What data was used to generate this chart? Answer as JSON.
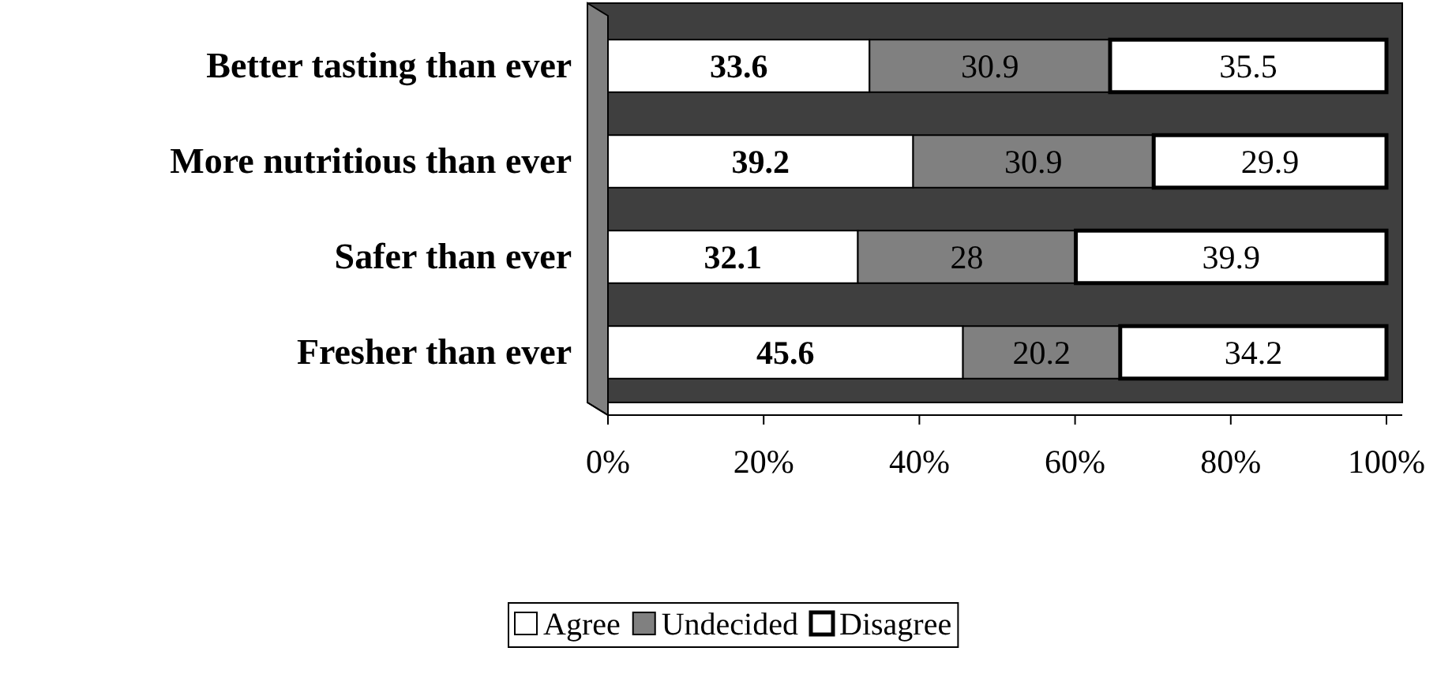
{
  "chart_data": {
    "type": "bar",
    "orientation": "horizontal",
    "stacked": true,
    "categories": [
      "Better tasting than ever",
      "More nutritious than ever",
      "Safer than ever",
      "Fresher than ever"
    ],
    "series": [
      {
        "name": "Agree",
        "color": "#ffffff",
        "values": [
          33.6,
          39.2,
          32.1,
          45.6
        ]
      },
      {
        "name": "Undecided",
        "color": "#808080",
        "values": [
          30.9,
          30.9,
          28,
          20.2
        ]
      },
      {
        "name": "Disagree",
        "color": "#ffffff",
        "values": [
          35.5,
          29.9,
          39.9,
          34.2
        ]
      }
    ],
    "xlim": [
      0,
      100
    ],
    "xticks": [
      {
        "value": 0,
        "label": "0%"
      },
      {
        "value": 20,
        "label": "20%"
      },
      {
        "value": 40,
        "label": "40%"
      },
      {
        "value": 60,
        "label": "60%"
      },
      {
        "value": 80,
        "label": "80%"
      },
      {
        "value": 100,
        "label": "100%"
      }
    ],
    "data_labels": true,
    "legend": "bottom"
  }
}
